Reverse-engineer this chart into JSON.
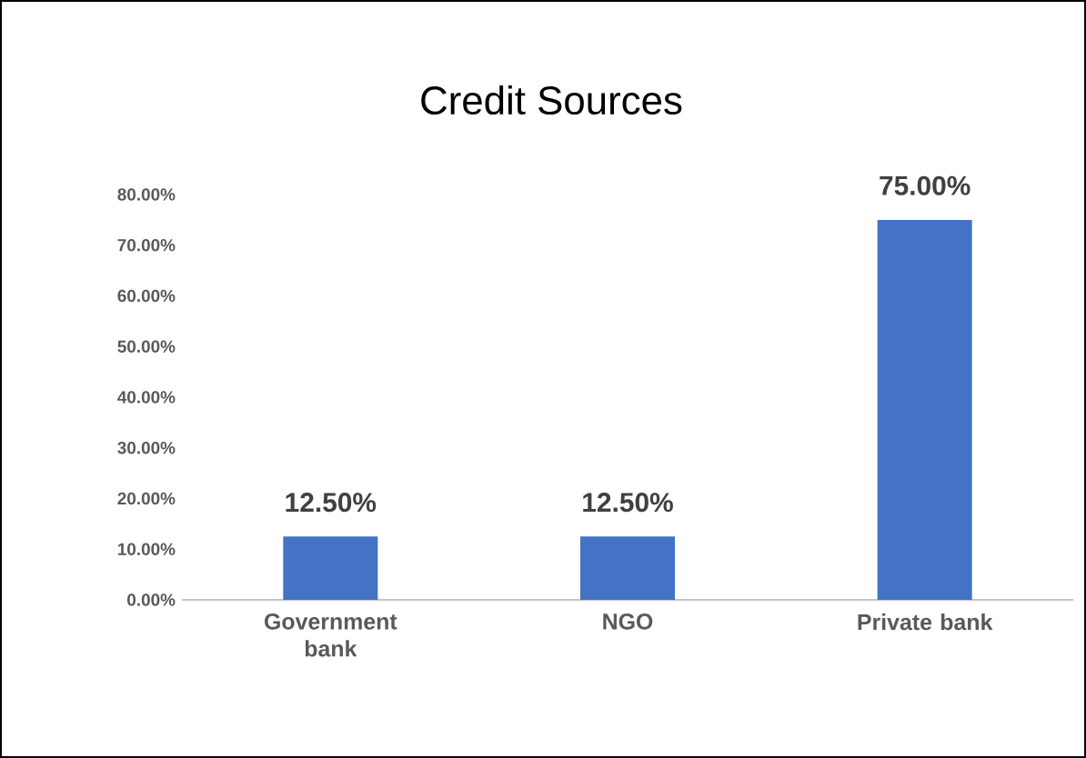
{
  "chart_data": {
    "type": "bar",
    "title": "Credit Sources",
    "categories": [
      "Government bank",
      "NGO",
      "Private bank"
    ],
    "values": [
      12.5,
      12.5,
      75
    ],
    "color": "#4472c4",
    "value_labels": [
      "12.50%",
      "12.50%",
      "75.00%"
    ],
    "ylim": [
      0,
      80
    ],
    "yticks": [
      {
        "value": 0,
        "label": "0.00%"
      },
      {
        "value": 10,
        "label": "10.00%"
      },
      {
        "value": 20,
        "label": "20.00%"
      },
      {
        "value": 30,
        "label": "30.00%"
      },
      {
        "value": 40,
        "label": "40.00%"
      },
      {
        "value": 50,
        "label": "50.00%"
      },
      {
        "value": 60,
        "label": "60.00%"
      },
      {
        "value": 70,
        "label": "70.00%"
      },
      {
        "value": 80,
        "label": "80.00%"
      }
    ]
  }
}
